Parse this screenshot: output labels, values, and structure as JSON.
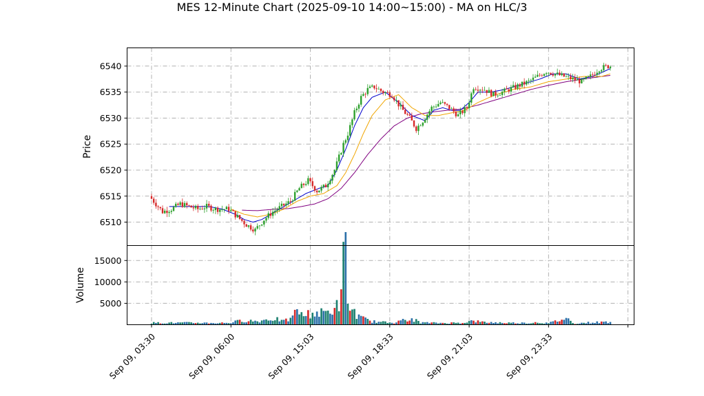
{
  "chart_data": [
    {
      "panel": "price",
      "type": "candlestick",
      "title": "MES 12-Minute Chart (2025-09-10 14:00~15:00) - MA on HLC/3",
      "ylabel": "Price",
      "xlabel": "",
      "ylim": [
        6505.5,
        6543.5
      ],
      "yticks": [
        "6510",
        "6515",
        "6520",
        "6525",
        "6530",
        "6535",
        "6540"
      ],
      "xticks": [
        "Sep 09, 03:30",
        "Sep 09, 06:00",
        "Sep 09, 15:03",
        "Sep 09, 18:33",
        "Sep 09, 21:03",
        "Sep 09, 23:33",
        ""
      ],
      "grid": true,
      "colors": {
        "up": "#2ca02c",
        "down": "#d62728",
        "ma_fast": "#0000cc",
        "ma_mid": "#f0a500",
        "ma_slow": "#800080"
      },
      "price_path": [
        [
          0,
          6515
        ],
        [
          6,
          6512
        ],
        [
          10,
          6512.5
        ],
        [
          14,
          6513.5
        ],
        [
          18,
          6513
        ],
        [
          22,
          6512.5
        ],
        [
          26,
          6513
        ],
        [
          30,
          6512.5
        ],
        [
          36,
          6512.5
        ],
        [
          40,
          6511
        ],
        [
          44,
          6509.5
        ],
        [
          48,
          6508.5
        ],
        [
          52,
          6510.5
        ],
        [
          56,
          6512
        ],
        [
          60,
          6513
        ],
        [
          64,
          6514
        ],
        [
          68,
          6516.5
        ],
        [
          72,
          6518
        ],
        [
          76,
          6516
        ],
        [
          80,
          6517
        ],
        [
          84,
          6520
        ],
        [
          88,
          6525
        ],
        [
          90,
          6527
        ],
        [
          93,
          6531
        ],
        [
          96,
          6534
        ],
        [
          99,
          6535.5
        ],
        [
          102,
          6536
        ],
        [
          106,
          6535
        ],
        [
          110,
          6534.5
        ],
        [
          114,
          6532
        ],
        [
          118,
          6530
        ],
        [
          121,
          6528
        ],
        [
          124,
          6529.5
        ],
        [
          128,
          6532
        ],
        [
          132,
          6533
        ],
        [
          136,
          6532
        ],
        [
          140,
          6530.5
        ],
        [
          144,
          6532
        ],
        [
          147,
          6536
        ],
        [
          152,
          6535.5
        ],
        [
          156,
          6534.5
        ],
        [
          160,
          6535
        ],
        [
          166,
          6536
        ],
        [
          172,
          6537
        ],
        [
          176,
          6538
        ],
        [
          180,
          6539
        ],
        [
          184,
          6538.5
        ],
        [
          188,
          6538
        ],
        [
          192,
          6537.5
        ],
        [
          196,
          6537
        ],
        [
          200,
          6538
        ],
        [
          204,
          6539.5
        ],
        [
          208,
          6540
        ]
      ],
      "ma_fast_path": [
        [
          8,
          6513
        ],
        [
          20,
          6513
        ],
        [
          26,
          6513
        ],
        [
          32,
          6512.5
        ],
        [
          38,
          6511.5
        ],
        [
          42,
          6510.5
        ],
        [
          46,
          6510
        ],
        [
          50,
          6510.5
        ],
        [
          56,
          6512
        ],
        [
          60,
          6513
        ],
        [
          64,
          6514
        ],
        [
          70,
          6515.5
        ],
        [
          76,
          6516.5
        ],
        [
          80,
          6517
        ],
        [
          84,
          6520
        ],
        [
          88,
          6524
        ],
        [
          92,
          6528.5
        ],
        [
          96,
          6532
        ],
        [
          100,
          6534
        ],
        [
          106,
          6535
        ],
        [
          112,
          6533
        ],
        [
          118,
          6530.5
        ],
        [
          124,
          6529.5
        ],
        [
          128,
          6531.5
        ],
        [
          132,
          6532
        ],
        [
          136,
          6531.5
        ],
        [
          140,
          6531.5
        ],
        [
          144,
          6533
        ],
        [
          148,
          6535
        ],
        [
          154,
          6535
        ],
        [
          160,
          6535.5
        ],
        [
          168,
          6536.5
        ],
        [
          176,
          6537.5
        ],
        [
          182,
          6538.5
        ],
        [
          188,
          6538.5
        ],
        [
          194,
          6537.5
        ],
        [
          200,
          6538
        ],
        [
          208,
          6539.5
        ]
      ],
      "ma_mid_path": [
        [
          36,
          6512.5
        ],
        [
          42,
          6511.5
        ],
        [
          48,
          6511
        ],
        [
          54,
          6511.5
        ],
        [
          60,
          6512.5
        ],
        [
          66,
          6514
        ],
        [
          72,
          6515
        ],
        [
          78,
          6515.5
        ],
        [
          84,
          6517
        ],
        [
          88,
          6519.5
        ],
        [
          92,
          6523
        ],
        [
          96,
          6527
        ],
        [
          100,
          6530.5
        ],
        [
          106,
          6533.5
        ],
        [
          112,
          6534.5
        ],
        [
          118,
          6532
        ],
        [
          124,
          6530.5
        ],
        [
          130,
          6530.5
        ],
        [
          136,
          6531
        ],
        [
          142,
          6531.5
        ],
        [
          148,
          6533
        ],
        [
          156,
          6534.5
        ],
        [
          164,
          6535.5
        ],
        [
          172,
          6536
        ],
        [
          180,
          6537
        ],
        [
          188,
          6537.5
        ],
        [
          196,
          6538
        ],
        [
          204,
          6538
        ],
        [
          208,
          6538.5
        ]
      ],
      "ma_slow_path": [
        [
          41,
          6512.3
        ],
        [
          48,
          6512.2
        ],
        [
          56,
          6512.5
        ],
        [
          62,
          6512.6
        ],
        [
          68,
          6513
        ],
        [
          74,
          6513.5
        ],
        [
          80,
          6514.5
        ],
        [
          86,
          6516.5
        ],
        [
          92,
          6519.5
        ],
        [
          98,
          6523
        ],
        [
          104,
          6526
        ],
        [
          110,
          6528.5
        ],
        [
          116,
          6530
        ],
        [
          122,
          6530.8
        ],
        [
          128,
          6531.2
        ],
        [
          134,
          6531.5
        ],
        [
          140,
          6531.7
        ],
        [
          148,
          6532.5
        ],
        [
          156,
          6533.5
        ],
        [
          164,
          6534.5
        ],
        [
          172,
          6535.5
        ],
        [
          180,
          6536.3
        ],
        [
          188,
          6537
        ],
        [
          196,
          6537.5
        ],
        [
          204,
          6538
        ],
        [
          208,
          6538.2
        ]
      ]
    },
    {
      "panel": "volume",
      "type": "bar",
      "ylabel": "Volume",
      "ylim": [
        0,
        18500
      ],
      "yticks": [
        "5000",
        "10000",
        "15000"
      ],
      "grid": true,
      "colors": {
        "up": "#1a7f6e",
        "down": "#2a6fa8",
        "alt": "#d62728"
      },
      "volume_path": [
        [
          0,
          450
        ],
        [
          20,
          450
        ],
        [
          30,
          400
        ],
        [
          36,
          500
        ],
        [
          40,
          900
        ],
        [
          44,
          1000
        ],
        [
          48,
          800
        ],
        [
          52,
          1200
        ],
        [
          56,
          1400
        ],
        [
          60,
          800
        ],
        [
          64,
          1600
        ],
        [
          66,
          4200
        ],
        [
          68,
          2200
        ],
        [
          70,
          2400
        ],
        [
          72,
          2600
        ],
        [
          74,
          2800
        ],
        [
          76,
          2600
        ],
        [
          78,
          2900
        ],
        [
          80,
          3000
        ],
        [
          82,
          3600
        ],
        [
          84,
          4300
        ],
        [
          86,
          6000
        ],
        [
          87,
          15000
        ],
        [
          88,
          17200
        ],
        [
          89,
          6500
        ],
        [
          90,
          3500
        ],
        [
          92,
          3000
        ],
        [
          94,
          1800
        ],
        [
          96,
          1400
        ],
        [
          98,
          1100
        ],
        [
          100,
          800
        ],
        [
          104,
          600
        ],
        [
          110,
          500
        ],
        [
          112,
          1300
        ],
        [
          116,
          700
        ],
        [
          118,
          1400
        ],
        [
          122,
          500
        ],
        [
          130,
          400
        ],
        [
          140,
          450
        ],
        [
          146,
          900
        ],
        [
          150,
          600
        ],
        [
          160,
          450
        ],
        [
          172,
          400
        ],
        [
          174,
          600
        ],
        [
          180,
          350
        ],
        [
          188,
          1500
        ],
        [
          192,
          300
        ],
        [
          198,
          500
        ],
        [
          204,
          600
        ],
        [
          208,
          700
        ]
      ]
    }
  ]
}
